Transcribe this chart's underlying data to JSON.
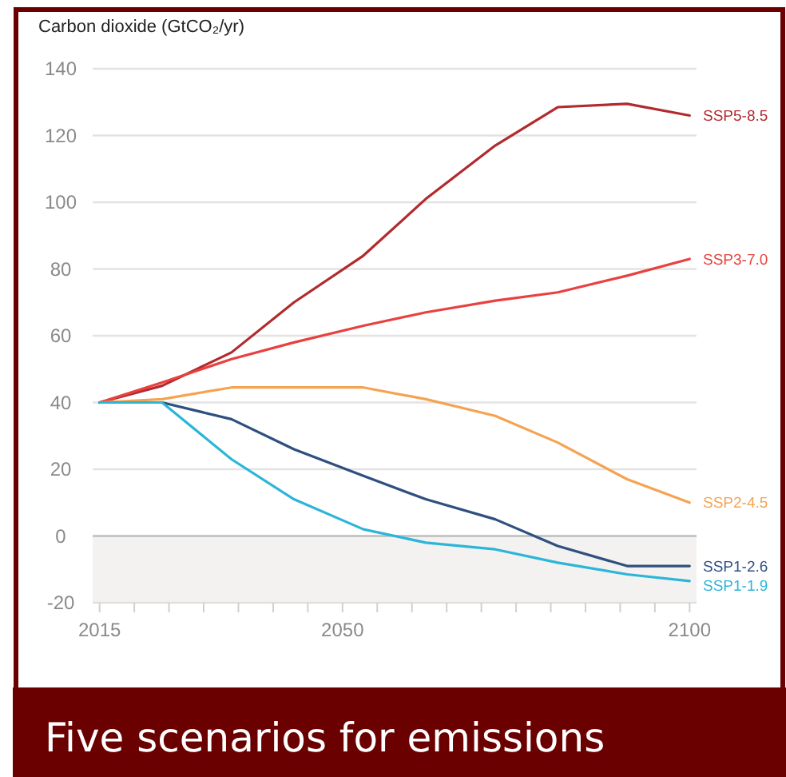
{
  "chart_data": {
    "type": "line",
    "title": "Five scenarios for emissions",
    "ylabel": "Carbon dioxide (GtCO₂/yr)",
    "x": [
      2015,
      2024,
      2034,
      2043,
      2053,
      2062,
      2072,
      2081,
      2091,
      2100
    ],
    "series": [
      {
        "name": "SSP5-8.5",
        "color": "#b22a2e",
        "values": [
          40,
          45,
          55,
          70,
          84,
          101,
          117,
          128.5,
          129.5,
          126
        ]
      },
      {
        "name": "SSP3-7.0",
        "color": "#e8413f",
        "values": [
          40,
          46,
          53,
          58,
          63,
          67,
          70.5,
          73,
          78,
          83
        ]
      },
      {
        "name": "SSP2-4.5",
        "color": "#f5a352",
        "values": [
          40,
          41,
          44.5,
          44.5,
          44.5,
          41,
          36,
          28,
          17,
          10
        ]
      },
      {
        "name": "SSP1-2.6",
        "color": "#2f4f7f",
        "values": [
          40,
          40,
          35,
          26,
          18,
          11,
          5,
          -3,
          -9,
          -9
        ]
      },
      {
        "name": "SSP1-1.9",
        "color": "#2bb5d8",
        "values": [
          40,
          40,
          23,
          11,
          2,
          -2,
          -4,
          -8,
          -11.5,
          -13.5
        ]
      }
    ],
    "xlim": [
      2014,
      2101
    ],
    "xticks": [
      2015,
      {
        "value": 2020,
        "label": null
      },
      {
        "value": 2025,
        "label": null
      },
      {
        "value": 2030,
        "label": null
      },
      {
        "value": 2035,
        "label": null
      },
      {
        "value": 2040,
        "label": null
      },
      {
        "value": 2045,
        "label": null
      },
      2050,
      {
        "value": 2055,
        "label": null
      },
      {
        "value": 2060,
        "label": null
      },
      {
        "value": 2065,
        "label": null
      },
      {
        "value": 2070,
        "label": null
      },
      {
        "value": 2075,
        "label": null
      },
      {
        "value": 2080,
        "label": null
      },
      {
        "value": 2085,
        "label": null
      },
      {
        "value": 2090,
        "label": null
      },
      {
        "value": 2095,
        "label": null
      },
      2100
    ],
    "ylim": [
      -20,
      140
    ],
    "yticks": [
      -20,
      0,
      20,
      40,
      60,
      80,
      100,
      120,
      140
    ],
    "bands": [
      {
        "axis": "y",
        "from": -20,
        "to": 0,
        "color": "#f3f2f1"
      }
    ],
    "grid": "y",
    "legend": false,
    "marker": "none",
    "line_style": "solid"
  }
}
